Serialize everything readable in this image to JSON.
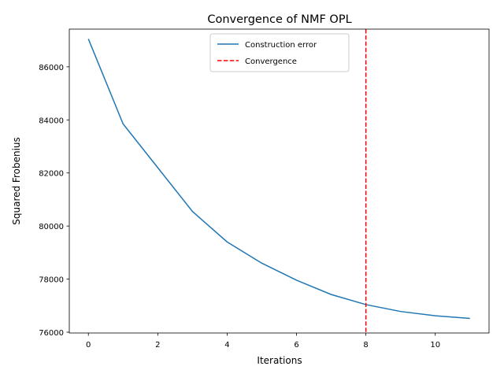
{
  "chart_data": {
    "type": "line",
    "title": "Convergence of NMF OPL",
    "xlabel": "Iterations",
    "ylabel": "Squared Frobenius",
    "xlim": [
      -0.55,
      11.55
    ],
    "ylim": [
      75970,
      87420
    ],
    "xticks": [
      0,
      2,
      4,
      6,
      8,
      10
    ],
    "yticks": [
      76000,
      78000,
      80000,
      82000,
      84000,
      86000
    ],
    "grid": false,
    "legend_position": "upper center",
    "series": [
      {
        "name": "Construction error",
        "color": "#1f77b4",
        "style": "solid",
        "x": [
          0,
          1,
          2,
          3,
          4,
          5,
          6,
          7,
          8,
          9,
          10,
          11
        ],
        "y": [
          87050,
          83850,
          82200,
          80550,
          79400,
          78600,
          77960,
          77420,
          77040,
          76780,
          76620,
          76520
        ]
      }
    ],
    "vlines": [
      {
        "name": "Convergence",
        "x": 8,
        "color": "#ff0000",
        "style": "dashed"
      }
    ]
  }
}
